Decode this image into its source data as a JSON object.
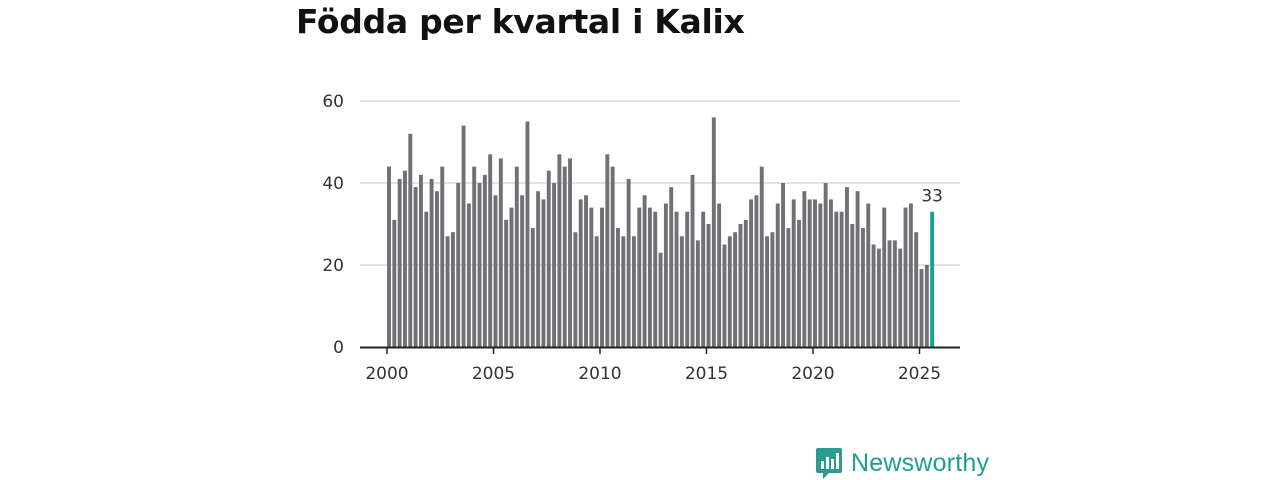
{
  "title": "Födda per kvartal i Kalix",
  "brand": {
    "name": "Newsworthy",
    "color": "#2a9d90"
  },
  "colors": {
    "bar": "#707075",
    "highlight": "#14a394",
    "grid": "#d9d9d9",
    "axis": "#222222"
  },
  "chart_data": {
    "type": "bar",
    "title": "Födda per kvartal i Kalix",
    "xlabel": "",
    "ylabel": "",
    "ylim": [
      0,
      60
    ],
    "yticks": [
      0,
      20,
      40,
      60
    ],
    "xticks": [
      2000,
      2005,
      2010,
      2015,
      2020,
      2025
    ],
    "start": {
      "year": 2000,
      "quarter": 1
    },
    "grid": true,
    "highlight_last": true,
    "annotation": "33",
    "values": [
      44,
      31,
      41,
      43,
      52,
      39,
      42,
      33,
      41,
      38,
      44,
      27,
      28,
      40,
      54,
      35,
      44,
      40,
      42,
      47,
      37,
      46,
      31,
      34,
      44,
      37,
      55,
      29,
      38,
      36,
      43,
      40,
      47,
      44,
      46,
      28,
      36,
      37,
      34,
      27,
      34,
      47,
      44,
      29,
      27,
      41,
      27,
      34,
      37,
      34,
      33,
      23,
      35,
      39,
      33,
      27,
      33,
      42,
      26,
      33,
      30,
      56,
      35,
      25,
      27,
      28,
      30,
      31,
      36,
      37,
      44,
      27,
      28,
      35,
      40,
      29,
      36,
      31,
      38,
      36,
      36,
      35,
      40,
      36,
      33,
      33,
      39,
      30,
      38,
      29,
      35,
      25,
      24,
      34,
      26,
      26,
      24,
      34,
      35,
      28,
      19,
      20,
      33
    ]
  }
}
